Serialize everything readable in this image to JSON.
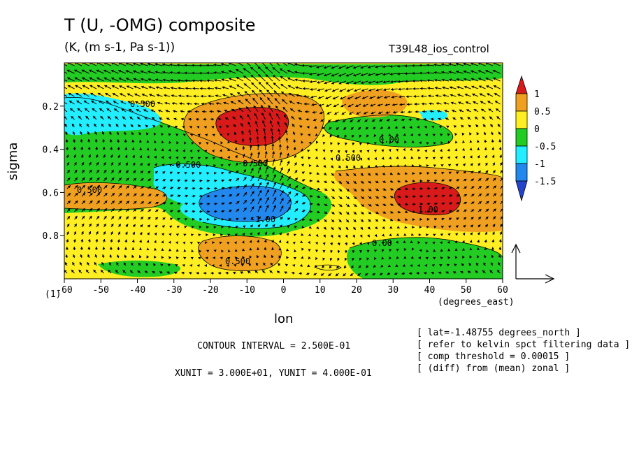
{
  "header": {
    "title": "T (U, -OMG) composite",
    "subtitle": "(K, (m s-1, Pa s-1))",
    "run_name": "T39L48_ios_control"
  },
  "notes": [
    "[ lat=-1.48755 degrees_north ]",
    "[ refer to kelvin spct filtering data ]",
    "[ comp threshold = 0.00015 ]",
    "[ (diff) from (mean) zonal ]"
  ],
  "footer": {
    "contour_interval": "CONTOUR INTERVAL = 2.500E-01",
    "units": "XUNIT = 3.000E+01, YUNIT = 4.000E-01"
  },
  "chart_data": {
    "type": "heatmap",
    "title": "T (U, -OMG) composite",
    "subtitle": "(K, (m s-1, Pa s-1))",
    "xlabel": "lon",
    "xunit": "(degrees_east)",
    "ylabel": "sigma",
    "xlim": [
      -60,
      60
    ],
    "ylim": [
      1.0,
      0.0
    ],
    "x_ticks": [
      "-60",
      "-50",
      "-40",
      "-30",
      "-20",
      "-10",
      "0",
      "10",
      "20",
      "30",
      "40",
      "50",
      "60"
    ],
    "y_ticks": [
      "0.2",
      "0.4",
      "0.6",
      "0.8"
    ],
    "y_bottom_label": "(1)",
    "colorbar": {
      "labels": [
        "1",
        "0.5",
        "0",
        "-0.5",
        "-1",
        "-1.5"
      ],
      "colors": [
        "#d91a1a",
        "#f0a020",
        "#ffee22",
        "#22cc22",
        "#22eeff",
        "#2288ee",
        "#2244cc"
      ]
    },
    "features": [
      {
        "name": "warm core upper",
        "lon": -8,
        "sigma": 0.3,
        "value": 1.0
      },
      {
        "name": "warm core lower east",
        "lon": 40,
        "sigma": 0.63,
        "value": 1.0
      },
      {
        "name": "cold core mid",
        "lon": -10,
        "sigma": 0.65,
        "value": -1.5
      },
      {
        "name": "cold band upper west",
        "lon": -45,
        "sigma": 0.18,
        "value": -1.0
      }
    ],
    "contour_labels": [
      "0.500",
      "-0.500",
      "-0.500",
      "0.500",
      "-1.00",
      "1.00",
      "0.00",
      "0.00",
      "0.500",
      "0.500"
    ],
    "vector_reference": {
      "xunit": 30.0,
      "yunit": 0.4
    }
  }
}
